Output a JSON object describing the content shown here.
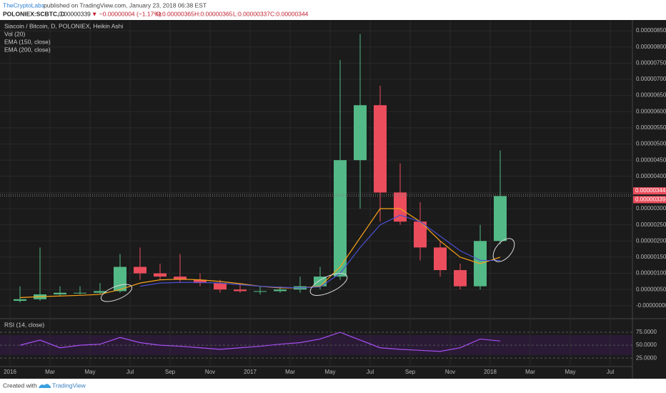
{
  "header": {
    "author": "TheCryptoLabs",
    "published": "published on TradingView.com, January 23, 2018 06:38 EST",
    "symbol": "POLONIEX:SCBTC, D",
    "price": "0.00000339",
    "change": "▼ −0.00000004 (−1.17%)",
    "open": "O:0.00000365",
    "high": "H:0.00000365",
    "low": "L:0.00000337",
    "close": "C:0.00000344"
  },
  "chart_data": {
    "type": "candlestick",
    "title": "Siacoin / Bitcoin, D, POLONIEX, Heikin Ashi",
    "volume_label": "Vol (20)",
    "x": [
      "2016-01",
      "2016-02",
      "2016-03",
      "2016-04",
      "2016-05",
      "2016-06",
      "2016-07",
      "2016-08",
      "2016-09",
      "2016-10",
      "2016-11",
      "2016-12",
      "2017-01",
      "2017-02",
      "2017-03",
      "2017-04",
      "2017-05",
      "2017-06",
      "2017-07",
      "2017-08",
      "2017-09",
      "2017-10",
      "2017-11",
      "2017-12",
      "2018-01"
    ],
    "open": [
      1.5e-07,
      2e-07,
      3.5e-07,
      4e-07,
      4e-07,
      4.5e-07,
      1.2e-06,
      1e-06,
      9e-07,
      8e-07,
      7e-07,
      5e-07,
      4.5e-07,
      4.5e-07,
      5e-07,
      6e-07,
      9e-07,
      4.5e-06,
      6.2e-06,
      3.5e-06,
      2.6e-06,
      1.8e-06,
      1.1e-06,
      6e-07,
      2e-06
    ],
    "high": [
      6e-07,
      1.8e-06,
      6e-07,
      6e-07,
      7e-07,
      1.6e-06,
      1.8e-06,
      1.3e-06,
      1.6e-06,
      1e-06,
      8e-07,
      7e-07,
      6e-07,
      6e-07,
      9e-07,
      1.2e-06,
      7.6e-06,
      8.4e-06,
      6.8e-06,
      4.4e-06,
      3.2e-06,
      2e-06,
      1.3e-06,
      2.5e-06,
      4.8e-06
    ],
    "low": [
      1e-07,
      1.5e-07,
      3e-07,
      3.5e-07,
      3.5e-07,
      4e-07,
      8e-07,
      8e-07,
      7e-07,
      6e-07,
      4e-07,
      4e-07,
      3.5e-07,
      4e-07,
      4e-07,
      5e-07,
      8e-07,
      3e-06,
      2.6e-06,
      2.5e-06,
      1.4e-06,
      9e-07,
      5e-07,
      5e-07,
      1.9e-06
    ],
    "close": [
      2e-07,
      3.5e-07,
      4e-07,
      4e-07,
      4.5e-07,
      1.2e-06,
      1e-06,
      9e-07,
      8e-07,
      7e-07,
      5e-07,
      4.5e-07,
      4.5e-07,
      5e-07,
      6e-07,
      9e-07,
      4.5e-06,
      6.2e-06,
      3.5e-06,
      2.6e-06,
      1.8e-06,
      1.1e-06,
      6e-07,
      2e-06,
      3.39e-06
    ],
    "up_color": "#53b987",
    "down_color": "#eb4d5c",
    "series": [
      {
        "name": "EMA (150, close)",
        "color": "#f7a21b",
        "values": [
          2.5e-07,
          2.8e-07,
          3e-07,
          3.2e-07,
          3.5e-07,
          5e-07,
          7e-07,
          8e-07,
          8.2e-07,
          8e-07,
          7.5e-07,
          6.8e-07,
          6e-07,
          5.5e-07,
          5.5e-07,
          6e-07,
          1.2e-06,
          2.1e-06,
          3e-06,
          3e-06,
          2.6e-06,
          2e-06,
          1.5e-06,
          1.3e-06,
          1.5e-06
        ]
      },
      {
        "name": "EMA (200, close)",
        "color": "#4a4fd0",
        "values": [
          null,
          null,
          null,
          null,
          null,
          null,
          6e-07,
          7e-07,
          7.2e-07,
          7.2e-07,
          7e-07,
          6.5e-07,
          6e-07,
          5.7e-07,
          5.5e-07,
          5.8e-07,
          1e-06,
          1.8e-06,
          2.5e-06,
          2.8e-06,
          2.6e-06,
          2.15e-06,
          1.7e-06,
          1.4e-06,
          1.4e-06
        ]
      }
    ],
    "ylim": [
      -3.8e-07,
      8.79e-06
    ],
    "yticks": [
      {
        "value": 8.5e-06,
        "label": "0.00000850"
      },
      {
        "value": 8e-06,
        "label": "0.00000800"
      },
      {
        "value": 7.5e-06,
        "label": "0.00000750"
      },
      {
        "value": 7e-06,
        "label": "0.00000700"
      },
      {
        "value": 6.5e-06,
        "label": "0.00000650"
      },
      {
        "value": 6e-06,
        "label": "0.00000600"
      },
      {
        "value": 5.5e-06,
        "label": "0.00000550"
      },
      {
        "value": 5e-06,
        "label": "0.00000500"
      },
      {
        "value": 4.5e-06,
        "label": "0.00000450"
      },
      {
        "value": 4e-06,
        "label": "0.00000400"
      },
      {
        "value": 3.5e-06,
        "label": "0.00000350"
      },
      {
        "value": 3e-06,
        "label": "0.00000300"
      },
      {
        "value": 2.5e-06,
        "label": "0.00000250"
      },
      {
        "value": 2e-06,
        "label": "0.00000200"
      },
      {
        "value": 1.5e-06,
        "label": "0.00000150"
      },
      {
        "value": 1e-06,
        "label": "0.00000100"
      },
      {
        "value": 5e-07,
        "label": "0.00000050"
      },
      {
        "value": 0,
        "label": "-0.00000000"
      }
    ],
    "price_tags": [
      {
        "value": 3.44e-06,
        "label": "0.00000344"
      },
      {
        "value": 3.39e-06,
        "label": "0.00000339"
      }
    ],
    "xticks": [
      {
        "value": "2016-01",
        "label": "2016"
      },
      {
        "value": "2016-03",
        "label": "Mar"
      },
      {
        "value": "2016-05",
        "label": "May"
      },
      {
        "value": "2016-07",
        "label": "Jul"
      },
      {
        "value": "2016-09",
        "label": "Sep"
      },
      {
        "value": "2016-11",
        "label": "Nov"
      },
      {
        "value": "2017-01",
        "label": "2017"
      },
      {
        "value": "2017-03",
        "label": "Mar"
      },
      {
        "value": "2017-05",
        "label": "May"
      },
      {
        "value": "2017-07",
        "label": "Jul"
      },
      {
        "value": "2017-09",
        "label": "Sep"
      },
      {
        "value": "2017-11",
        "label": "Nov"
      },
      {
        "value": "2018-01",
        "label": "2018"
      },
      {
        "value": "2018-03",
        "label": "Mar"
      },
      {
        "value": "2018-05",
        "label": "May"
      },
      {
        "value": "2018-07",
        "label": "Jul"
      }
    ],
    "grid": true,
    "rsi": {
      "name": "RSI (14, close)",
      "color": "#a64ff0",
      "values": [
        50,
        60,
        45,
        50,
        52,
        65,
        55,
        50,
        48,
        45,
        42,
        45,
        48,
        52,
        55,
        62,
        75,
        60,
        45,
        42,
        40,
        38,
        45,
        62,
        58
      ],
      "ylim": [
        10,
        100
      ],
      "yticks": [
        {
          "value": 75,
          "label": "75.0000"
        },
        {
          "value": 50,
          "label": "50.0000"
        },
        {
          "value": 25,
          "label": "25.0000"
        }
      ]
    }
  },
  "footer": {
    "created": "Created with",
    "brand": "TradingView"
  }
}
